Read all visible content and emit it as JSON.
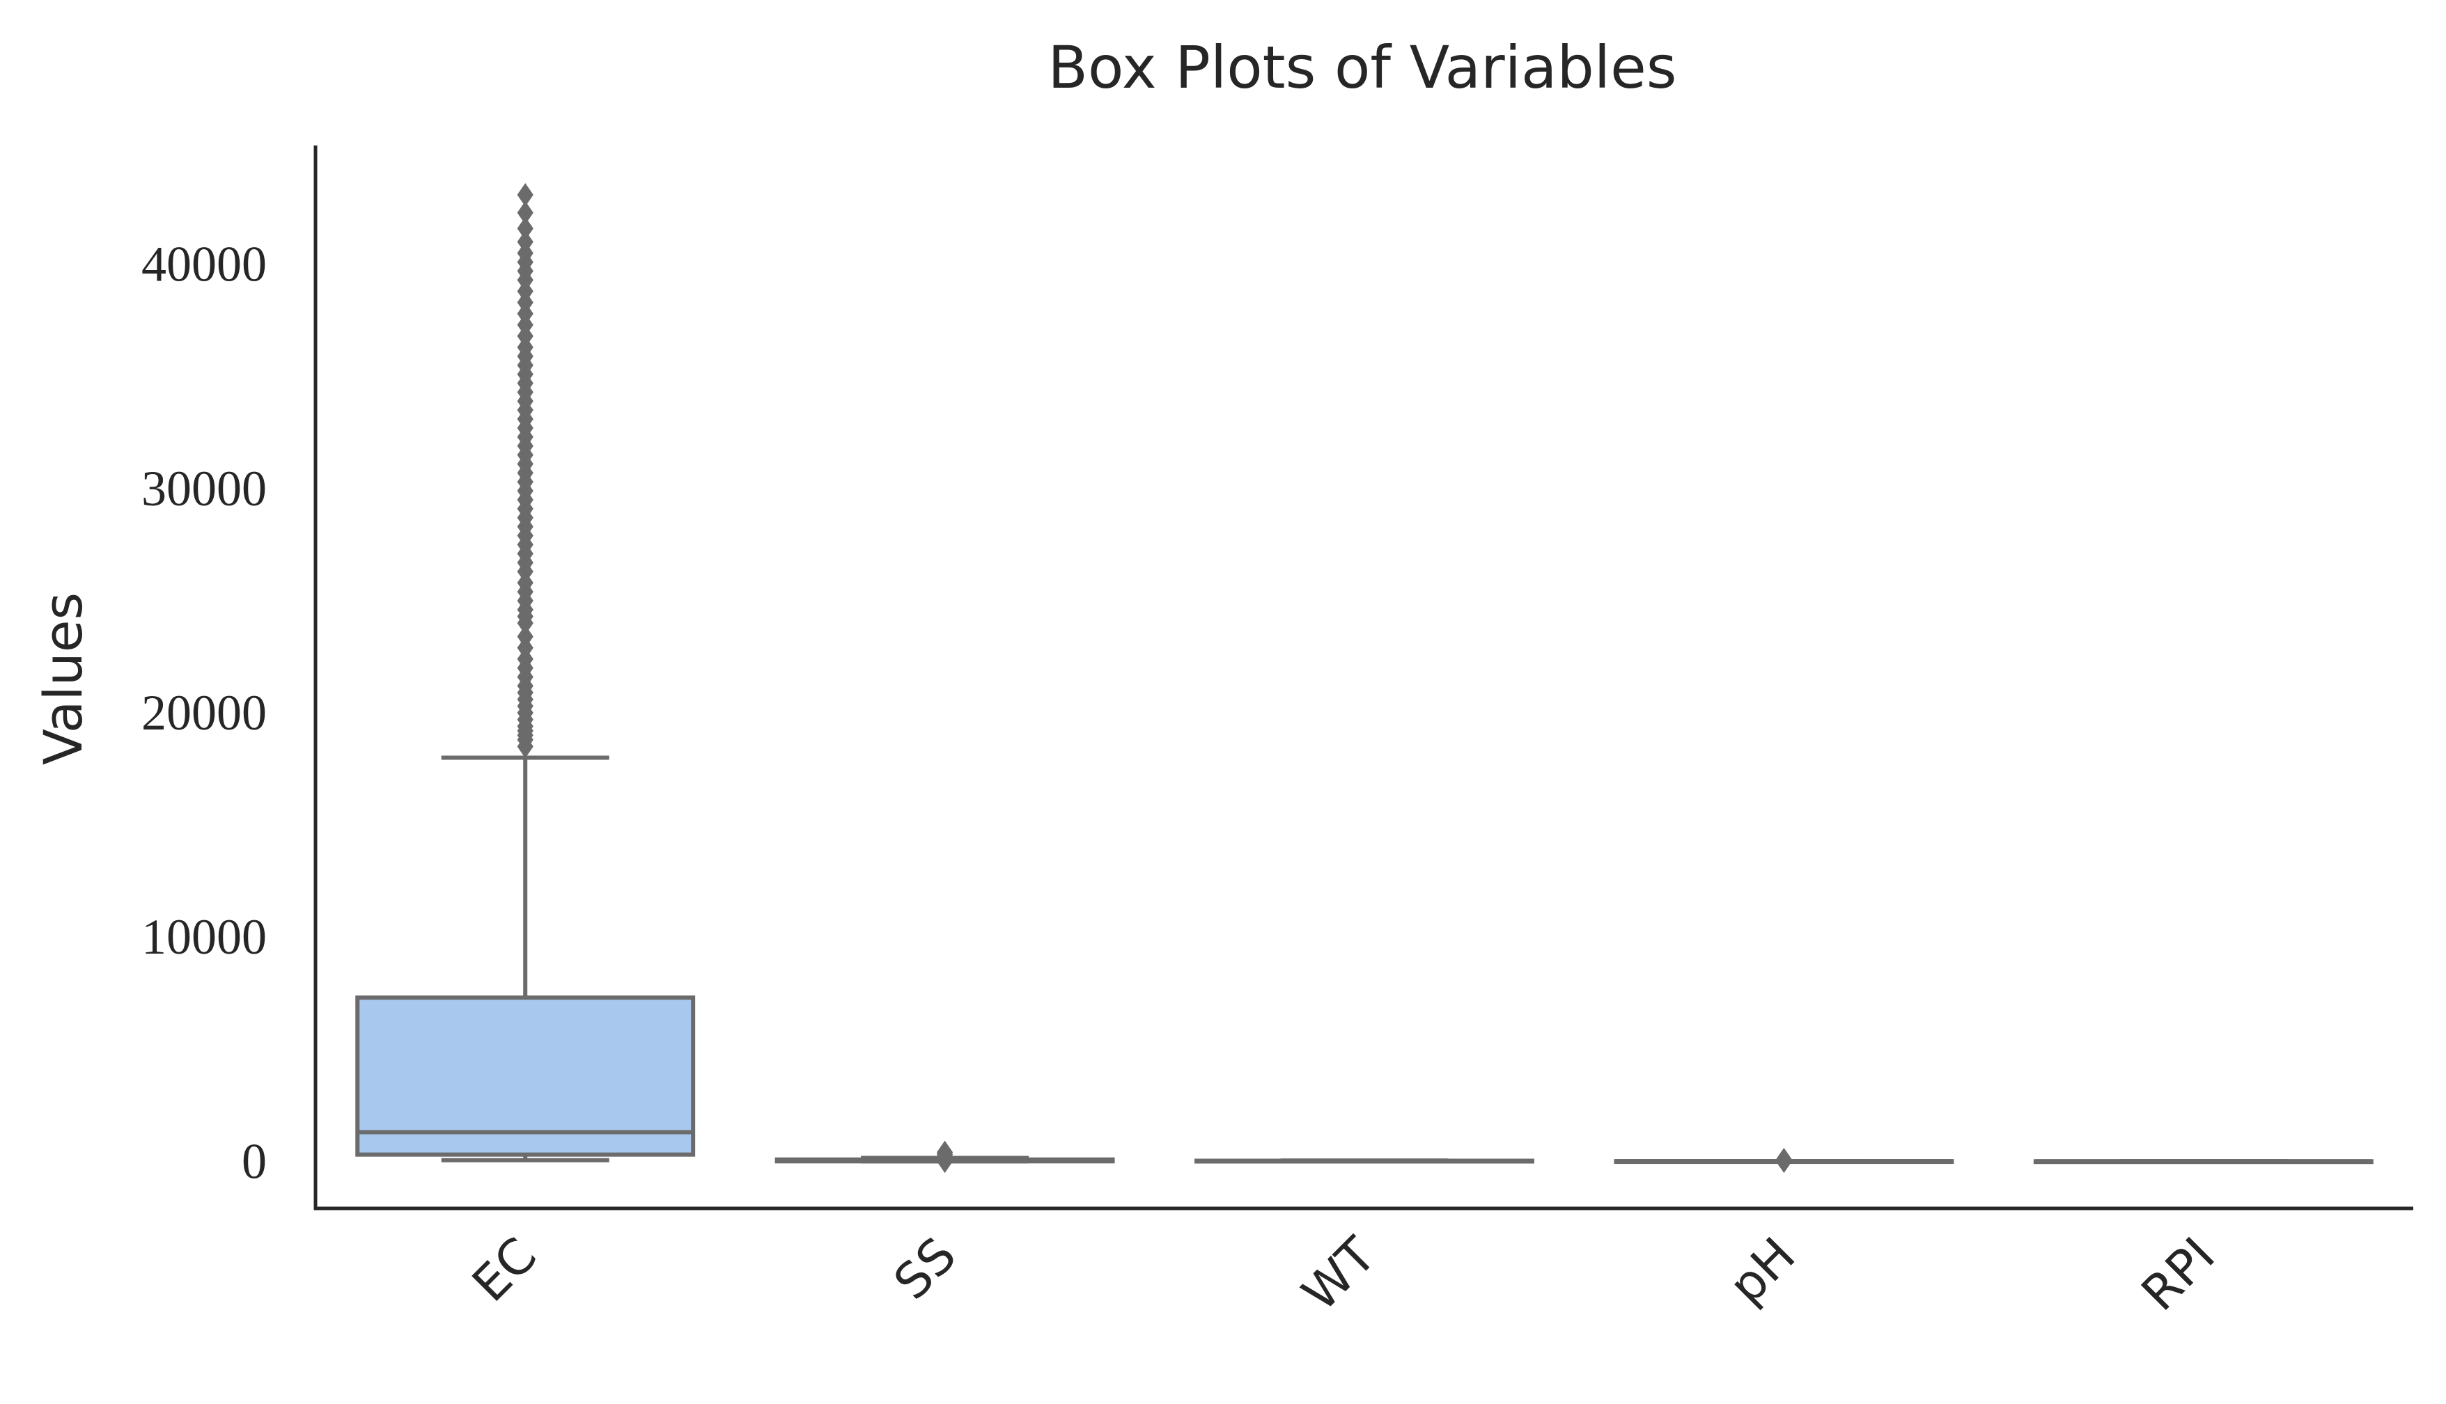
{
  "chart_data": {
    "type": "box",
    "title": "Box Plots of Variables",
    "xlabel": "",
    "ylabel": "Values",
    "ylim": [
      -2100,
      45300
    ],
    "yticks": [
      0,
      10000,
      20000,
      30000,
      40000
    ],
    "ytick_labels": [
      "0",
      "10000",
      "20000",
      "30000",
      "40000"
    ],
    "grid": false,
    "categories": [
      "EC",
      "SS",
      "WT",
      "pH",
      "RPI"
    ],
    "box_fill_colors": [
      "#a9c8ed",
      "#ffffff",
      "#ffffff",
      "#ffffff",
      "#ffffff"
    ],
    "line_color": "#6b6b6b",
    "axis_color": "#262626",
    "boxes": [
      {
        "category": "EC",
        "whisker_low": 50,
        "q1": 300,
        "median": 1300,
        "q3": 7300,
        "whisker_high": 18000,
        "outliers": [
          18500,
          18800,
          19000,
          19200,
          19400,
          19700,
          20000,
          20300,
          20600,
          20900,
          21200,
          21600,
          22000,
          22400,
          22900,
          23400,
          24000,
          24300,
          24600,
          25000,
          25400,
          25800,
          26300,
          26700,
          27100,
          27500,
          27900,
          28300,
          28700,
          29100,
          29500,
          29900,
          30300,
          30700,
          31100,
          31500,
          31900,
          32300,
          32700,
          33100,
          33500,
          33900,
          34300,
          34700,
          35100,
          35500,
          35900,
          36300,
          36800,
          37300,
          37800,
          38300,
          38800,
          39300,
          39700,
          40100,
          40500,
          41000,
          41600,
          42300,
          43100
        ]
      },
      {
        "category": "SS",
        "whisker_low": 0,
        "q1": 0,
        "median": 30,
        "q3": 80,
        "whisker_high": 150,
        "outliers": [
          0,
          100,
          200,
          300,
          400
        ]
      },
      {
        "category": "WT",
        "whisker_low": 0,
        "q1": 0,
        "median": 10,
        "q3": 25,
        "whisker_high": 35,
        "outliers": []
      },
      {
        "category": "pH",
        "whisker_low": 0,
        "q1": 5,
        "median": 7,
        "q3": 8,
        "whisker_high": 10,
        "outliers": [
          0,
          20,
          40,
          60,
          80
        ]
      },
      {
        "category": "RPI",
        "whisker_low": 0,
        "q1": 0,
        "median": 2,
        "q3": 3,
        "whisker_high": 5,
        "outliers": []
      }
    ]
  }
}
